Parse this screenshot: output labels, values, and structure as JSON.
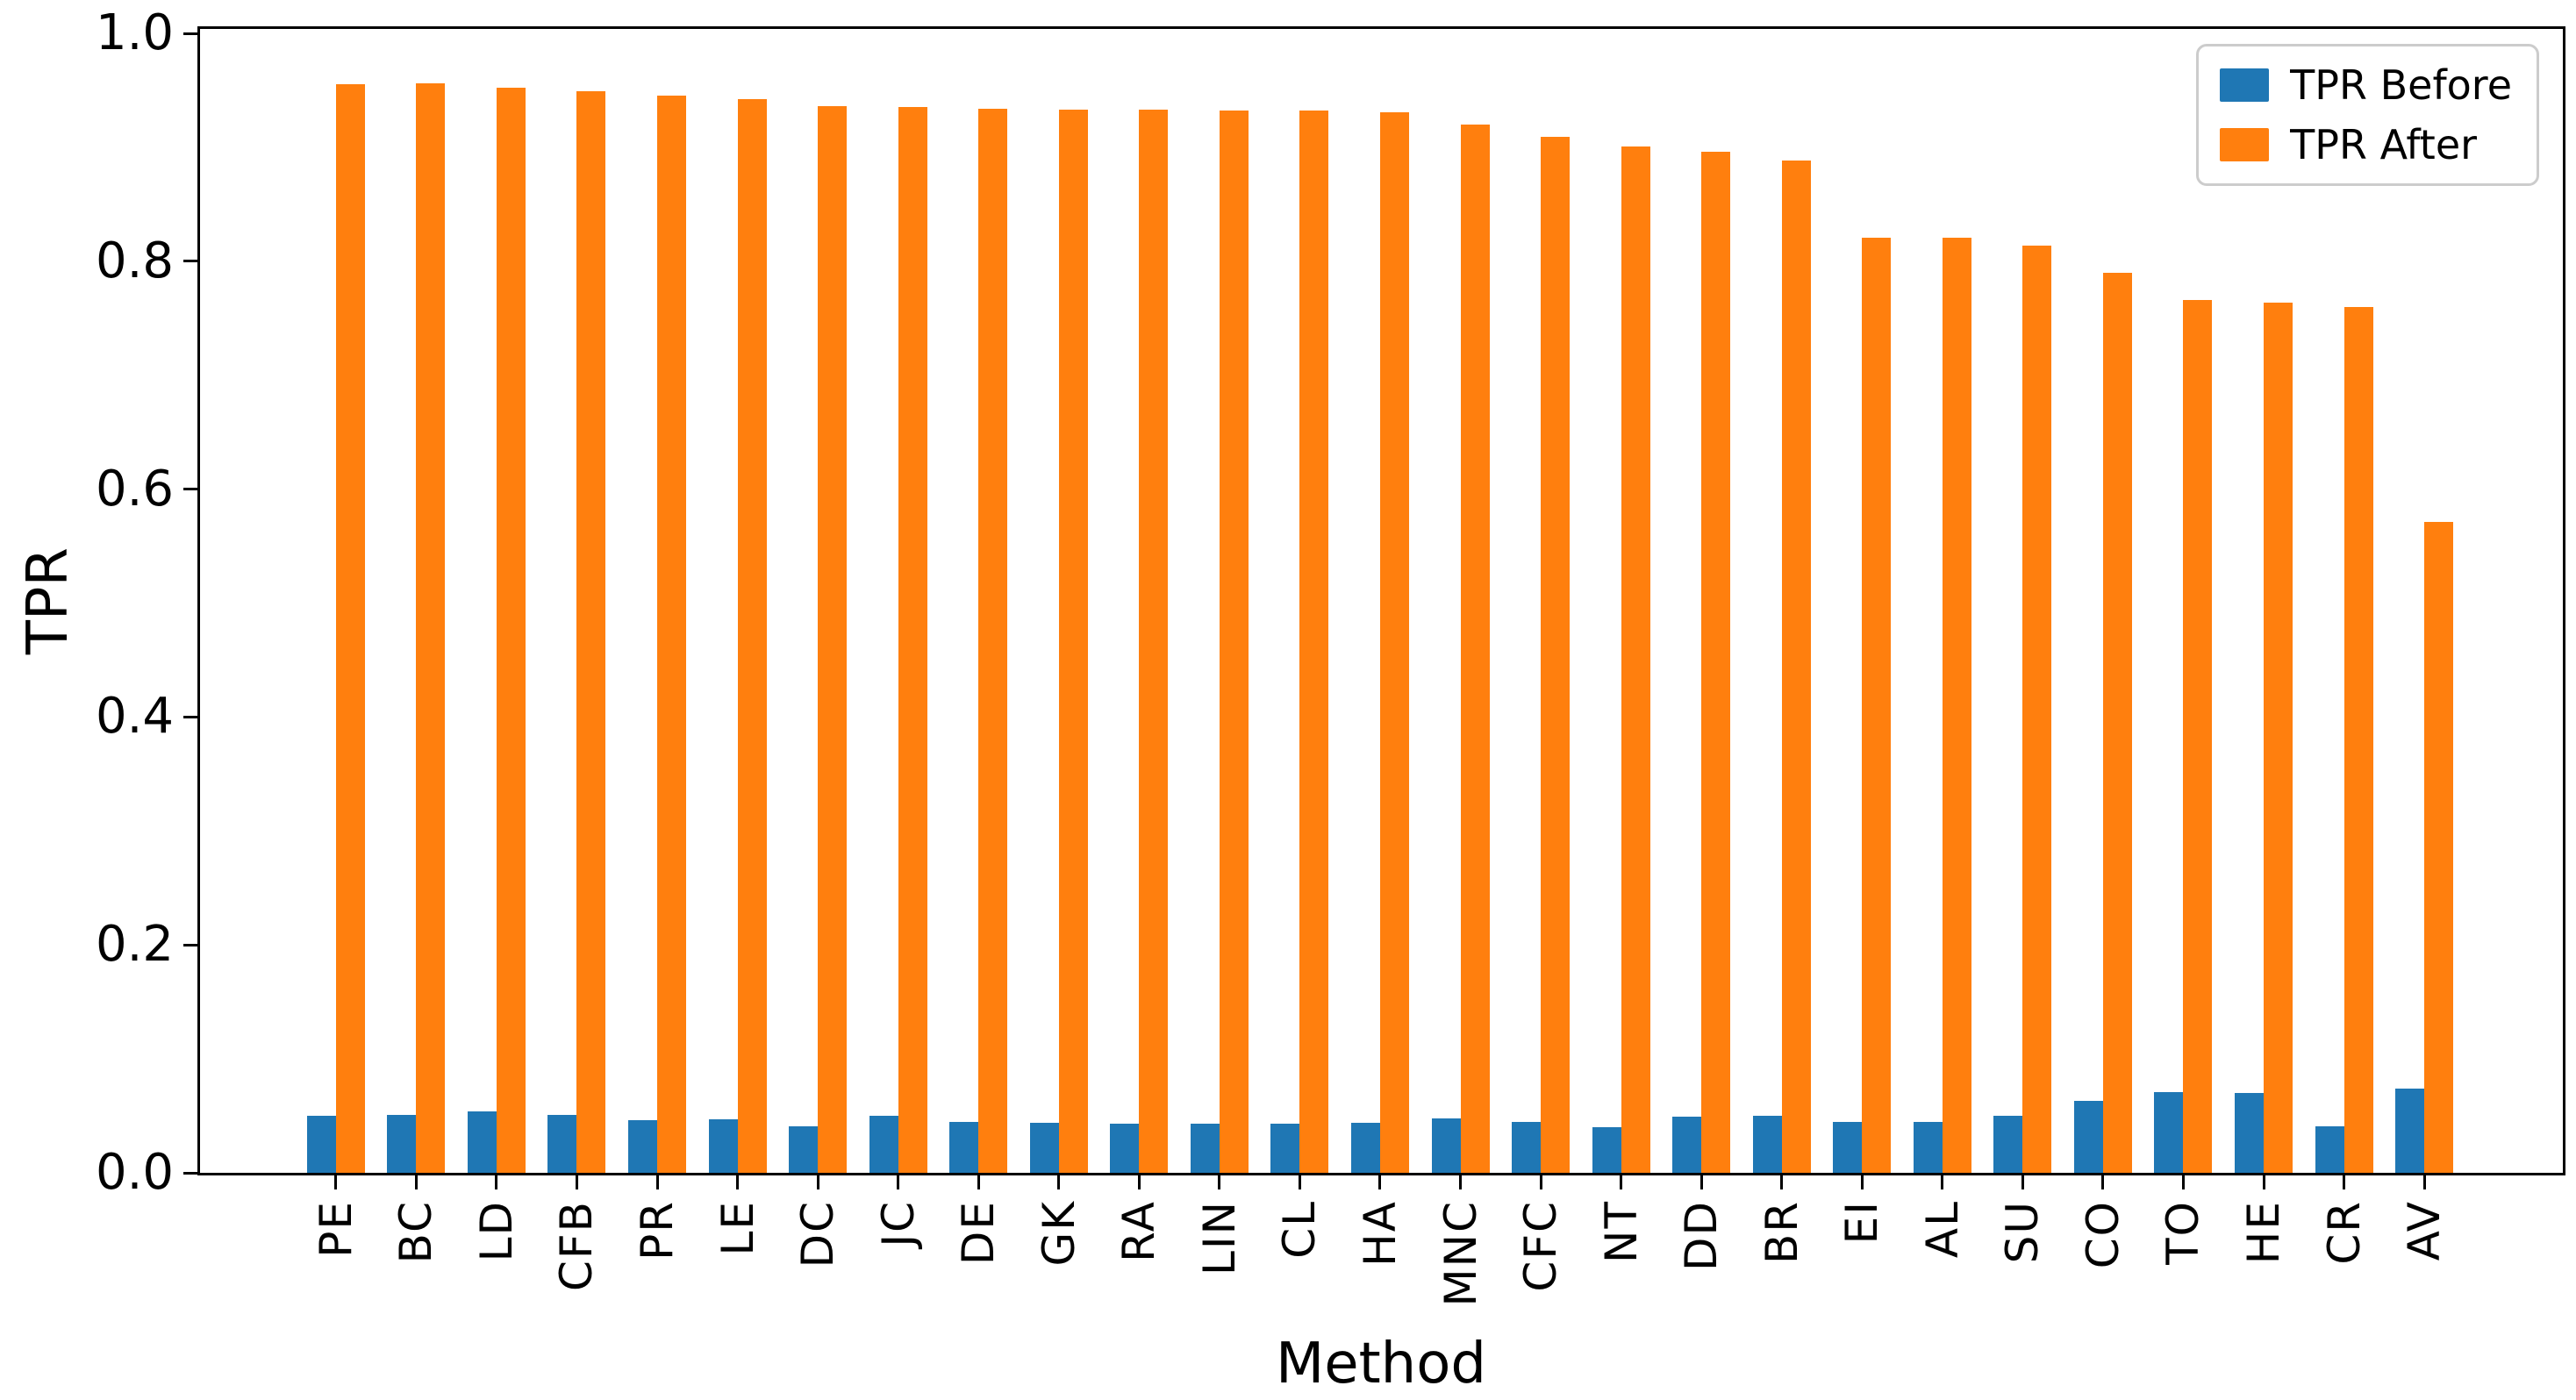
{
  "figure": {
    "xlabel": "Method",
    "ylabel": "TPR",
    "y_ticks": [
      "0.0",
      "0.2",
      "0.4",
      "0.6",
      "0.8",
      "1.0"
    ]
  },
  "chart_data": {
    "type": "bar",
    "title": "",
    "xlabel": "Method",
    "ylabel": "TPR",
    "ylim": [
      0.0,
      1.0
    ],
    "grid": false,
    "legend_position": "upper right",
    "x_tick_rotation": 90,
    "categories": [
      "PE",
      "BC",
      "LD",
      "CFB",
      "PR",
      "LE",
      "DC",
      "JC",
      "DE",
      "GK",
      "RA",
      "LIN",
      "CL",
      "HA",
      "MNC",
      "CFC",
      "NT",
      "DD",
      "BR",
      "EI",
      "AL",
      "SU",
      "CO",
      "TO",
      "HE",
      "CR",
      "AV"
    ],
    "series": [
      {
        "name": "TPR Before",
        "color": "#1f77b4",
        "values": [
          0.05,
          0.051,
          0.054,
          0.051,
          0.046,
          0.047,
          0.041,
          0.05,
          0.045,
          0.044,
          0.043,
          0.043,
          0.043,
          0.044,
          0.048,
          0.045,
          0.04,
          0.049,
          0.05,
          0.045,
          0.045,
          0.05,
          0.063,
          0.071,
          0.07,
          0.041,
          0.074
        ]
      },
      {
        "name": "TPR After",
        "color": "#ff7f0e",
        "values": [
          0.955,
          0.956,
          0.952,
          0.949,
          0.945,
          0.942,
          0.936,
          0.935,
          0.934,
          0.933,
          0.933,
          0.932,
          0.932,
          0.931,
          0.92,
          0.909,
          0.901,
          0.896,
          0.888,
          0.821,
          0.821,
          0.814,
          0.79,
          0.766,
          0.764,
          0.76,
          0.571
        ]
      }
    ]
  }
}
